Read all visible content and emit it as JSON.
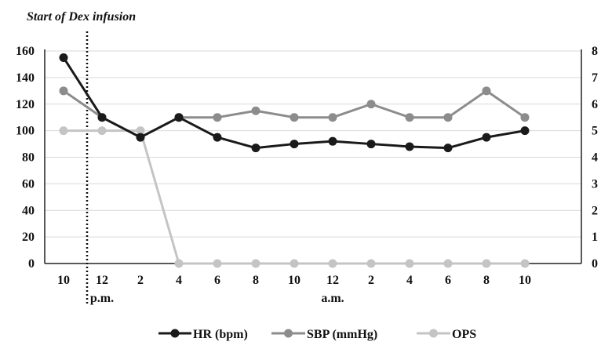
{
  "chart_data": {
    "type": "line",
    "annotation": "Start of Dex infusion",
    "categories": [
      "10",
      "12",
      "2",
      "4",
      "6",
      "8",
      "10",
      "12",
      "2",
      "4",
      "6",
      "8",
      "10"
    ],
    "period_labels": [
      "p.m.",
      "a.m."
    ],
    "y_left": {
      "ticks": [
        "0",
        "20",
        "40",
        "60",
        "80",
        "100",
        "120",
        "140",
        "160"
      ],
      "range": [
        0,
        160
      ]
    },
    "y_right": {
      "ticks": [
        "0",
        "1",
        "2",
        "3",
        "4",
        "5",
        "6",
        "7",
        "8"
      ],
      "range": [
        0,
        8
      ]
    },
    "series": [
      {
        "name": "HR (bpm)",
        "axis": "left",
        "color": "#1a1a1a",
        "values": [
          155,
          110,
          95,
          110,
          95,
          87,
          90,
          92,
          90,
          88,
          87,
          95,
          100
        ]
      },
      {
        "name": "SBP (mmHg)",
        "axis": "left",
        "color": "#8c8c8c",
        "values": [
          130,
          110,
          95,
          110,
          110,
          115,
          110,
          110,
          120,
          110,
          110,
          130,
          110
        ]
      },
      {
        "name": "OPS",
        "axis": "right",
        "color": "#c4c4c4",
        "values": [
          5,
          5,
          5,
          0,
          0,
          0,
          0,
          0,
          0,
          0,
          0,
          0,
          0
        ]
      }
    ],
    "grid": true,
    "legend_position": "bottom"
  }
}
